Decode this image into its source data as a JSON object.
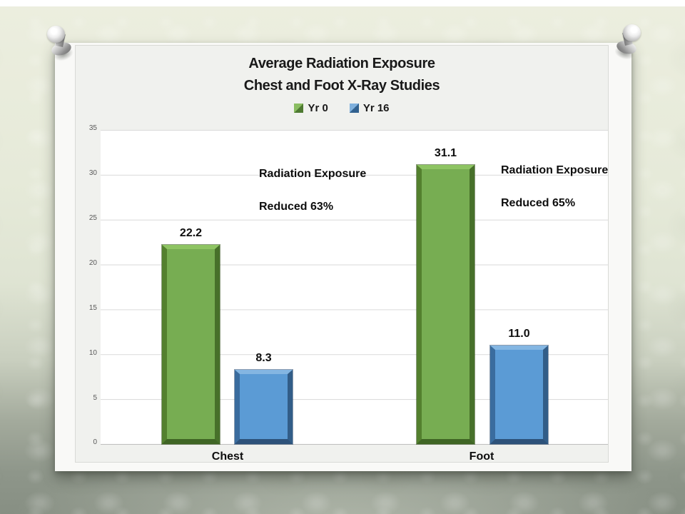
{
  "slide": {
    "background_top_color": "#e7ebdd",
    "background_bottom_color": "#8e968a",
    "paper_color": "#f9f9f7"
  },
  "chart_data": {
    "type": "bar",
    "title": "Average Radiation Exposure",
    "subtitle": "Chest and Foot X-Ray Studies",
    "categories": [
      "Chest",
      "Foot"
    ],
    "series": [
      {
        "name": "Yr 0",
        "color": "#77ad52",
        "values": [
          22.2,
          31.1
        ],
        "labels": [
          "22.2",
          "31.1"
        ]
      },
      {
        "name": "Yr 16",
        "color": "#5b9bd5",
        "values": [
          8.3,
          11.0
        ],
        "labels": [
          "8.3",
          "11.0"
        ]
      }
    ],
    "ylim": [
      0,
      35
    ],
    "ytick_interval": 5,
    "yticks": [
      "35",
      "30",
      "25",
      "20",
      "15",
      "10",
      "5",
      "0"
    ],
    "grid": true,
    "legend_position": "top-center",
    "annotations": [
      {
        "target": "Chest",
        "line1": "Radiation Exposure",
        "line2": "Reduced 63%"
      },
      {
        "target": "Foot",
        "line1": "Radiation Exposure",
        "line2": "Reduced 65%"
      }
    ]
  }
}
